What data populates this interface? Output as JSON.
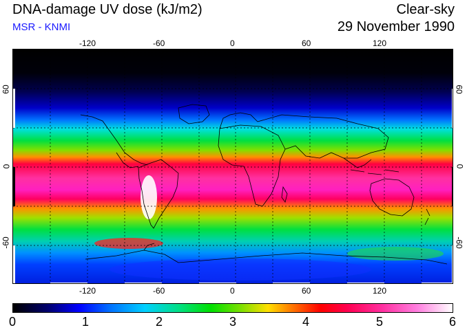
{
  "header": {
    "title": "DNA-damage UV dose (kJ/m2)",
    "subtitle": "MSR - KNMI",
    "condition": "Clear-sky",
    "date": "29 November 1990"
  },
  "map": {
    "longitude_ticks_top": [
      "-120",
      "-60",
      "0",
      "60",
      "120"
    ],
    "longitude_ticks_bottom": [
      "-120",
      "-60",
      "0",
      "60",
      "120"
    ],
    "latitude_ticks_left": [
      "60",
      "0",
      "-60"
    ],
    "latitude_ticks_right": [
      "60",
      "0",
      "-60"
    ],
    "colors": {
      "land_outline": "#000000",
      "grid": "#000000"
    }
  },
  "colorbar": {
    "labels": [
      "0",
      "1",
      "2",
      "3",
      "4",
      "5",
      "6"
    ],
    "min": 0,
    "max": 6
  }
}
